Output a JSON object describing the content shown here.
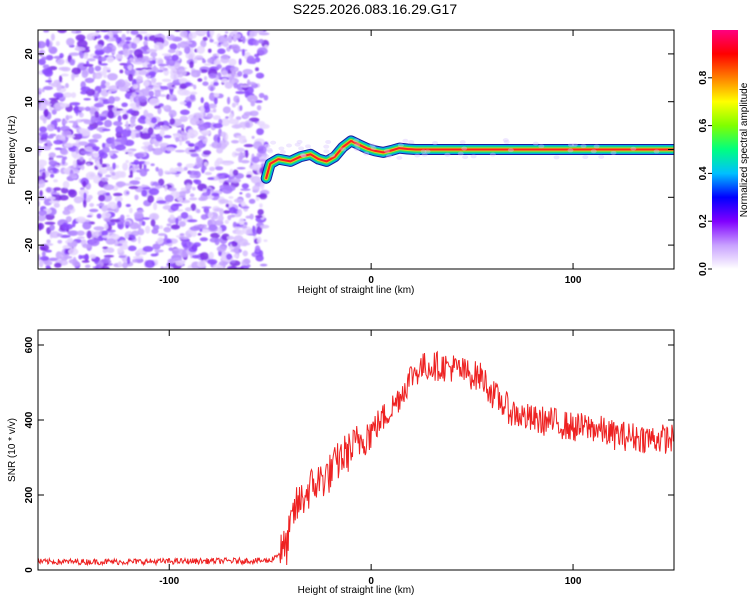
{
  "title": "S225.2026.083.16.29.G17",
  "chart_data": [
    {
      "type": "heatmap",
      "xlabel": "Height of straight line (km)",
      "ylabel": "Frequency (Hz)",
      "xlim": [
        -165,
        150
      ],
      "ylim": [
        -25,
        25
      ],
      "x_ticks": [
        -100,
        0,
        100
      ],
      "y_ticks": [
        -20,
        -10,
        0,
        10,
        20
      ],
      "colorbar": {
        "label": "Normalized spectral amplitude",
        "range": [
          0,
          1
        ],
        "ticks": [
          "0.0",
          "0.2",
          "0.4",
          "0.6",
          "0.8"
        ],
        "colors": [
          "#ffffff",
          "#c8a0ff",
          "#8000ff",
          "#0000ff",
          "#00c0ff",
          "#00ff80",
          "#80ff00",
          "#ffff00",
          "#ff8000",
          "#ff0000",
          "#ff0080"
        ]
      },
      "noise_region_x": [
        -165,
        -52
      ],
      "ridge": [
        {
          "x": -52,
          "y": -6
        },
        {
          "x": -50,
          "y": -3
        },
        {
          "x": -46,
          "y": -2
        },
        {
          "x": -40,
          "y": -2.5
        },
        {
          "x": -35,
          "y": -1.5
        },
        {
          "x": -30,
          "y": -1
        },
        {
          "x": -26,
          "y": -2
        },
        {
          "x": -22,
          "y": -2.5
        },
        {
          "x": -18,
          "y": -1.5
        },
        {
          "x": -14,
          "y": 0.5
        },
        {
          "x": -10,
          "y": 1.8
        },
        {
          "x": -6,
          "y": 1.0
        },
        {
          "x": -2,
          "y": 0.2
        },
        {
          "x": 2,
          "y": -0.3
        },
        {
          "x": 6,
          "y": -0.6
        },
        {
          "x": 10,
          "y": -0.2
        },
        {
          "x": 14,
          "y": 0.3
        },
        {
          "x": 18,
          "y": 0.1
        },
        {
          "x": 22,
          "y": 0.0
        },
        {
          "x": 60,
          "y": 0.0
        },
        {
          "x": 100,
          "y": 0.0
        },
        {
          "x": 150,
          "y": 0.0
        }
      ]
    },
    {
      "type": "line",
      "xlabel": "Height of straight line (km)",
      "ylabel": "SNR (10 * v/v)",
      "xlim": [
        -165,
        150
      ],
      "ylim": [
        0,
        640
      ],
      "x_ticks": [
        -100,
        0,
        100
      ],
      "y_ticks": [
        0,
        200,
        400,
        600
      ],
      "series": [
        {
          "color": "#ee2222",
          "x": [
            -165,
            -120,
            -80,
            -50,
            -42,
            -38,
            -30,
            -20,
            -15,
            -10,
            -5,
            0,
            10,
            15,
            20,
            25,
            30,
            40,
            50,
            55,
            60,
            70,
            80,
            90,
            100,
            110,
            120,
            130,
            140,
            150
          ],
          "y": [
            22,
            22,
            24,
            25,
            60,
            160,
            220,
            260,
            300,
            320,
            350,
            370,
            430,
            470,
            520,
            540,
            545,
            540,
            520,
            515,
            470,
            420,
            400,
            395,
            380,
            380,
            360,
            355,
            350,
            350
          ]
        }
      ]
    }
  ]
}
